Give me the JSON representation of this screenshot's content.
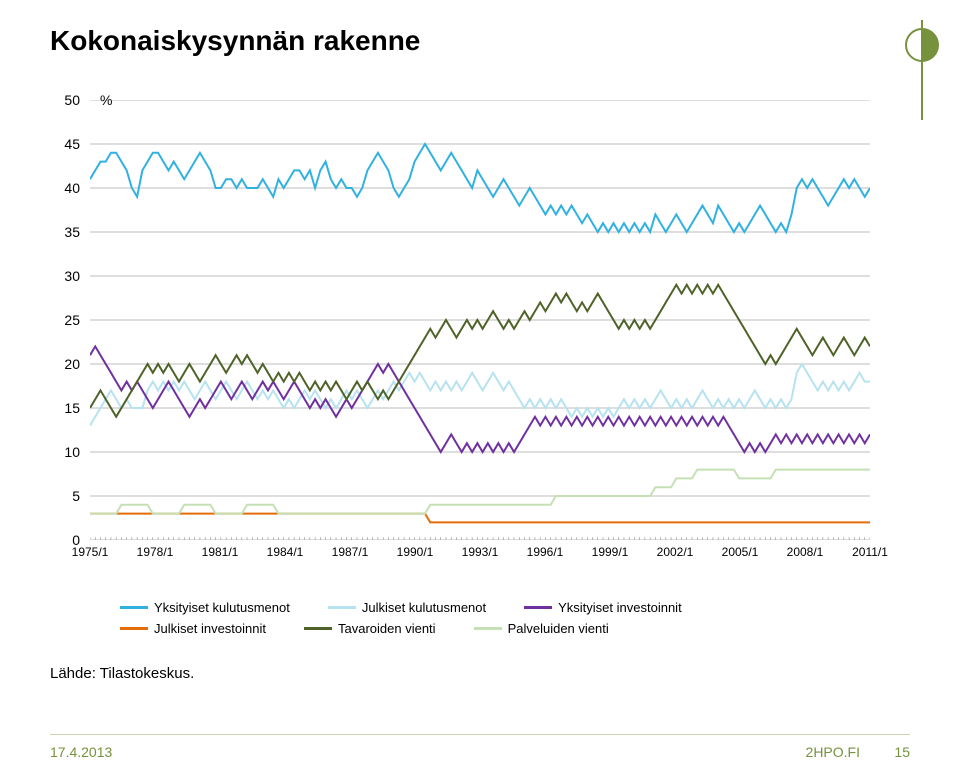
{
  "title": "Kokonaiskysynnän rakenne",
  "chart": {
    "type": "line",
    "ylim": [
      0,
      50
    ],
    "ytick_step": 5,
    "yticks": [
      0,
      5,
      10,
      15,
      20,
      25,
      30,
      35,
      40,
      45,
      50
    ],
    "xlabels": [
      "1975/1",
      "1978/1",
      "1981/1",
      "1984/1",
      "1987/1",
      "1990/1",
      "1993/1",
      "1996/1",
      "1999/1",
      "2002/1",
      "2005/1",
      "2008/1",
      "2011/1"
    ],
    "percent_symbol": "%",
    "background_color": "#ffffff",
    "grid_color": "#7f7f7f",
    "yaxis_fontsize": 14,
    "xaxis_fontsize": 12,
    "line_width": 2,
    "series": [
      {
        "id": "yksityiset_kulutusmenot",
        "label": "Yksityiset kulutusmenot",
        "color": "#31b1e0",
        "data": [
          41,
          42,
          43,
          43,
          44,
          44,
          43,
          42,
          40,
          39,
          42,
          43,
          44,
          44,
          43,
          42,
          43,
          42,
          41,
          42,
          43,
          44,
          43,
          42,
          40,
          40,
          41,
          41,
          40,
          41,
          40,
          40,
          40,
          41,
          40,
          39,
          41,
          40,
          41,
          42,
          42,
          41,
          42,
          40,
          42,
          43,
          41,
          40,
          41,
          40,
          40,
          39,
          40,
          42,
          43,
          44,
          43,
          42,
          40,
          39,
          40,
          41,
          43,
          44,
          45,
          44,
          43,
          42,
          43,
          44,
          43,
          42,
          41,
          40,
          42,
          41,
          40,
          39,
          40,
          41,
          40,
          39,
          38,
          39,
          40,
          39,
          38,
          37,
          38,
          37,
          38,
          37,
          38,
          37,
          36,
          37,
          36,
          35,
          36,
          35,
          36,
          35,
          36,
          35,
          36,
          35,
          36,
          35,
          37,
          36,
          35,
          36,
          37,
          36,
          35,
          36,
          37,
          38,
          37,
          36,
          38,
          37,
          36,
          35,
          36,
          35,
          36,
          37,
          38,
          37,
          36,
          35,
          36,
          35,
          37,
          40,
          41,
          40,
          41,
          40,
          39,
          38,
          39,
          40,
          41,
          40,
          41,
          40,
          39,
          40
        ]
      },
      {
        "id": "julkiset_kulutusmenot",
        "label": "Julkiset kulutusmenot",
        "color": "#b7e2f0",
        "data": [
          13,
          14,
          15,
          16,
          17,
          16,
          15,
          16,
          15,
          15,
          15,
          17,
          18,
          17,
          18,
          17,
          18,
          17,
          18,
          17,
          16,
          17,
          18,
          17,
          16,
          17,
          18,
          17,
          16,
          17,
          18,
          17,
          16,
          17,
          16,
          17,
          16,
          15,
          16,
          15,
          16,
          17,
          16,
          17,
          16,
          15,
          16,
          15,
          16,
          17,
          16,
          17,
          16,
          15,
          16,
          17,
          16,
          17,
          18,
          17,
          18,
          19,
          18,
          19,
          18,
          17,
          18,
          17,
          18,
          17,
          18,
          17,
          18,
          19,
          18,
          17,
          18,
          19,
          18,
          17,
          18,
          17,
          16,
          15,
          16,
          15,
          16,
          15,
          16,
          15,
          16,
          15,
          14,
          15,
          14,
          15,
          14,
          15,
          14,
          15,
          14,
          15,
          16,
          15,
          16,
          15,
          16,
          15,
          16,
          17,
          16,
          15,
          16,
          15,
          16,
          15,
          16,
          17,
          16,
          15,
          16,
          15,
          16,
          15,
          16,
          15,
          16,
          17,
          16,
          15,
          16,
          15,
          16,
          15,
          16,
          19,
          20,
          19,
          18,
          17,
          18,
          17,
          18,
          17,
          18,
          17,
          18,
          19,
          18,
          18
        ]
      },
      {
        "id": "yksityiset_investoinnit",
        "label": "Yksityiset investoinnit",
        "color": "#7030a0",
        "data": [
          21,
          22,
          21,
          20,
          19,
          18,
          17,
          18,
          17,
          18,
          17,
          16,
          15,
          16,
          17,
          18,
          17,
          16,
          15,
          14,
          15,
          16,
          15,
          16,
          17,
          18,
          17,
          16,
          17,
          18,
          17,
          16,
          17,
          18,
          17,
          18,
          17,
          16,
          17,
          18,
          17,
          16,
          15,
          16,
          15,
          16,
          15,
          14,
          15,
          16,
          15,
          16,
          17,
          18,
          19,
          20,
          19,
          20,
          19,
          18,
          17,
          16,
          15,
          14,
          13,
          12,
          11,
          10,
          11,
          12,
          11,
          10,
          11,
          10,
          11,
          10,
          11,
          10,
          11,
          10,
          11,
          10,
          11,
          12,
          13,
          14,
          13,
          14,
          13,
          14,
          13,
          14,
          13,
          14,
          13,
          14,
          13,
          14,
          13,
          14,
          13,
          14,
          13,
          14,
          13,
          14,
          13,
          14,
          13,
          14,
          13,
          14,
          13,
          14,
          13,
          14,
          13,
          14,
          13,
          14,
          13,
          14,
          13,
          12,
          11,
          10,
          11,
          10,
          11,
          10,
          11,
          12,
          11,
          12,
          11,
          12,
          11,
          12,
          11,
          12,
          11,
          12,
          11,
          12,
          11,
          12,
          11,
          12,
          11,
          12
        ]
      },
      {
        "id": "julkiset_investoinnit",
        "label": "Julkiset investoinnit",
        "color": "#e46c0a",
        "data": [
          3,
          3,
          3,
          3,
          3,
          3,
          3,
          3,
          3,
          3,
          3,
          3,
          3,
          3,
          3,
          3,
          3,
          3,
          3,
          3,
          3,
          3,
          3,
          3,
          3,
          3,
          3,
          3,
          3,
          3,
          3,
          3,
          3,
          3,
          3,
          3,
          3,
          3,
          3,
          3,
          3,
          3,
          3,
          3,
          3,
          3,
          3,
          3,
          3,
          3,
          3,
          3,
          3,
          3,
          3,
          3,
          3,
          3,
          3,
          3,
          3,
          3,
          3,
          3,
          3,
          2,
          2,
          2,
          2,
          2,
          2,
          2,
          2,
          2,
          2,
          2,
          2,
          2,
          2,
          2,
          2,
          2,
          2,
          2,
          2,
          2,
          2,
          2,
          2,
          2,
          2,
          2,
          2,
          2,
          2,
          2,
          2,
          2,
          2,
          2,
          2,
          2,
          2,
          2,
          2,
          2,
          2,
          2,
          2,
          2,
          2,
          2,
          2,
          2,
          2,
          2,
          2,
          2,
          2,
          2,
          2,
          2,
          2,
          2,
          2,
          2,
          2,
          2,
          2,
          2,
          2,
          2,
          2,
          2,
          2,
          2,
          2,
          2,
          2,
          2,
          2,
          2,
          2,
          2,
          2,
          2,
          2,
          2,
          2,
          2
        ]
      },
      {
        "id": "tavaroiden_vienti",
        "label": "Tavaroiden vienti",
        "color": "#4f6228",
        "data": [
          15,
          16,
          17,
          16,
          15,
          14,
          15,
          16,
          17,
          18,
          19,
          20,
          19,
          20,
          19,
          20,
          19,
          18,
          19,
          20,
          19,
          18,
          19,
          20,
          21,
          20,
          19,
          20,
          21,
          20,
          21,
          20,
          19,
          20,
          19,
          18,
          19,
          18,
          19,
          18,
          19,
          18,
          17,
          18,
          17,
          18,
          17,
          18,
          17,
          16,
          17,
          18,
          17,
          18,
          17,
          16,
          17,
          16,
          17,
          18,
          19,
          20,
          21,
          22,
          23,
          24,
          23,
          24,
          25,
          24,
          23,
          24,
          25,
          24,
          25,
          24,
          25,
          26,
          25,
          24,
          25,
          24,
          25,
          26,
          25,
          26,
          27,
          26,
          27,
          28,
          27,
          28,
          27,
          26,
          27,
          26,
          27,
          28,
          27,
          26,
          25,
          24,
          25,
          24,
          25,
          24,
          25,
          24,
          25,
          26,
          27,
          28,
          29,
          28,
          29,
          28,
          29,
          28,
          29,
          28,
          29,
          28,
          27,
          26,
          25,
          24,
          23,
          22,
          21,
          20,
          21,
          20,
          21,
          22,
          23,
          24,
          23,
          22,
          21,
          22,
          23,
          22,
          21,
          22,
          23,
          22,
          21,
          22,
          23,
          22
        ]
      },
      {
        "id": "palveluiden_vienti",
        "label": "Palveluiden vienti",
        "color": "#c5e0b4",
        "data": [
          3,
          3,
          3,
          3,
          3,
          3,
          4,
          4,
          4,
          4,
          4,
          4,
          3,
          3,
          3,
          3,
          3,
          3,
          4,
          4,
          4,
          4,
          4,
          4,
          3,
          3,
          3,
          3,
          3,
          3,
          4,
          4,
          4,
          4,
          4,
          4,
          3,
          3,
          3,
          3,
          3,
          3,
          3,
          3,
          3,
          3,
          3,
          3,
          3,
          3,
          3,
          3,
          3,
          3,
          3,
          3,
          3,
          3,
          3,
          3,
          3,
          3,
          3,
          3,
          3,
          4,
          4,
          4,
          4,
          4,
          4,
          4,
          4,
          4,
          4,
          4,
          4,
          4,
          4,
          4,
          4,
          4,
          4,
          4,
          4,
          4,
          4,
          4,
          4,
          5,
          5,
          5,
          5,
          5,
          5,
          5,
          5,
          5,
          5,
          5,
          5,
          5,
          5,
          5,
          5,
          5,
          5,
          5,
          6,
          6,
          6,
          6,
          7,
          7,
          7,
          7,
          8,
          8,
          8,
          8,
          8,
          8,
          8,
          8,
          7,
          7,
          7,
          7,
          7,
          7,
          7,
          8,
          8,
          8,
          8,
          8,
          8,
          8,
          8,
          8,
          8,
          8,
          8,
          8,
          8,
          8,
          8,
          8,
          8,
          8
        ]
      }
    ]
  },
  "legend": {
    "row1": [
      {
        "label": "Yksityiset kulutusmenot",
        "color": "#31b1e0"
      },
      {
        "label": "Julkiset kulutusmenot",
        "color": "#b7e2f0"
      },
      {
        "label": "Yksityiset investoinnit",
        "color": "#7030a0"
      }
    ],
    "row2": [
      {
        "label": "Julkiset investoinnit",
        "color": "#e46c0a"
      },
      {
        "label": "Tavaroiden vienti",
        "color": "#4f6228"
      },
      {
        "label": "Palveluiden vienti",
        "color": "#c5e0b4"
      }
    ]
  },
  "source": "Lähde: Tilastokeskus.",
  "footer": {
    "date": "17.4.2013",
    "site": "2HPO.FI",
    "page": "15"
  },
  "logo": {
    "stroke": "#76923c",
    "fill": "#76923c"
  }
}
